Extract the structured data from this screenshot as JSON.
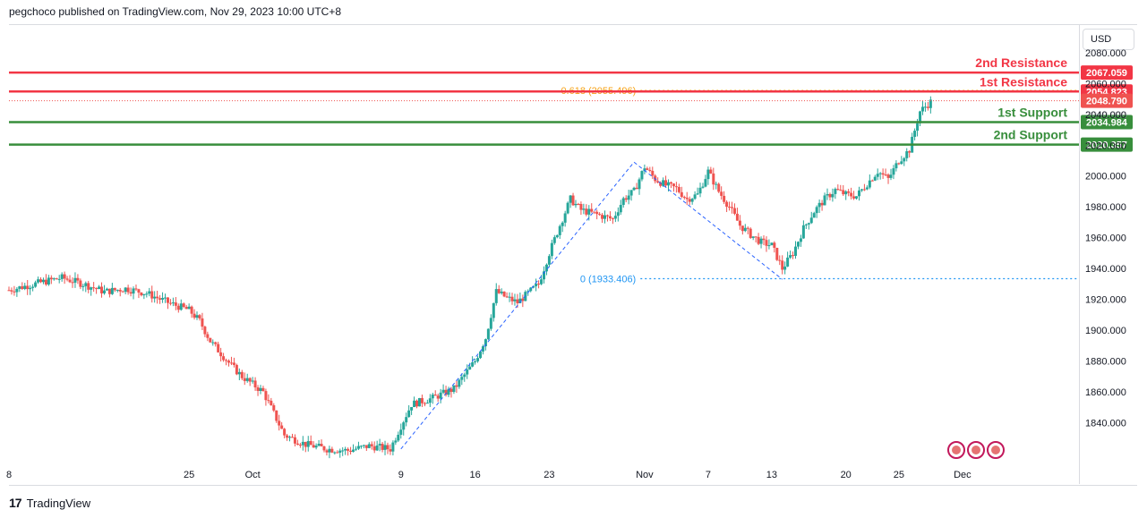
{
  "header": {
    "attribution": "pegchoco published on TradingView.com, Nov 29, 2023 10:00 UTC+8"
  },
  "price_axis": {
    "currency": "USD"
  },
  "footer": {
    "brand": "TradingView",
    "logo_glyph": "17"
  },
  "colors": {
    "up": "#26a69a",
    "down": "#ef5350",
    "resistance": "#f23645",
    "support": "#388e3c",
    "fib_line": "#2962ff",
    "fib_618": "#f7a21b",
    "fib_0": "#2196f3",
    "axis_text": "#131722"
  },
  "chart_data": {
    "type": "candlestick",
    "symbol_scale": "linear",
    "ylim": [
      1820,
      2095
    ],
    "y_ticks": [
      1840,
      1860,
      1880,
      1900,
      1920,
      1940,
      1960,
      1980,
      2000,
      2020,
      2040,
      2060,
      2080
    ],
    "y_tick_labels": [
      "1840.000",
      "1860.000",
      "1880.000",
      "1900.000",
      "1920.000",
      "1940.000",
      "1960.000",
      "1980.000",
      "2000.000",
      "2020.000",
      "2040.000",
      "2060.000",
      "2080.000"
    ],
    "x_tick_labels": [
      {
        "label": "8",
        "day": 0
      },
      {
        "label": "25",
        "day": 17
      },
      {
        "label": "Oct",
        "day": 23
      },
      {
        "label": "9",
        "day": 37
      },
      {
        "label": "16",
        "day": 44
      },
      {
        "label": "23",
        "day": 51
      },
      {
        "label": "Nov",
        "day": 60
      },
      {
        "label": "7",
        "day": 66
      },
      {
        "label": "13",
        "day": 72
      },
      {
        "label": "20",
        "day": 79
      },
      {
        "label": "25",
        "day": 84
      },
      {
        "label": "Dec",
        "day": 90
      }
    ],
    "x_range_days": [
      0,
      101
    ],
    "close_path": [
      [
        0,
        1926
      ],
      [
        3,
        1931
      ],
      [
        5,
        1934
      ],
      [
        7,
        1930
      ],
      [
        9,
        1925
      ],
      [
        11,
        1927
      ],
      [
        13,
        1924
      ],
      [
        15,
        1918
      ],
      [
        17,
        1913
      ],
      [
        18,
        1906
      ],
      [
        19,
        1893
      ],
      [
        21,
        1877
      ],
      [
        22,
        1870
      ],
      [
        24,
        1860
      ],
      [
        26,
        1832
      ],
      [
        28,
        1826
      ],
      [
        30,
        1823
      ],
      [
        32,
        1822
      ],
      [
        34,
        1825
      ],
      [
        36,
        1823
      ],
      [
        37,
        1838
      ],
      [
        38,
        1852
      ],
      [
        40,
        1856
      ],
      [
        42,
        1862
      ],
      [
        43,
        1871
      ],
      [
        44,
        1880
      ],
      [
        45,
        1895
      ],
      [
        46,
        1925
      ],
      [
        47,
        1921
      ],
      [
        48,
        1918
      ],
      [
        50,
        1930
      ],
      [
        51,
        1950
      ],
      [
        52,
        1968
      ],
      [
        53,
        1985
      ],
      [
        54,
        1978
      ],
      [
        55,
        1976
      ],
      [
        57,
        1972
      ],
      [
        58,
        1985
      ],
      [
        59,
        1990
      ],
      [
        60,
        2006
      ],
      [
        61,
        1998
      ],
      [
        62,
        1994
      ],
      [
        63,
        1992
      ],
      [
        64,
        1985
      ],
      [
        65,
        1988
      ],
      [
        66,
        2003
      ],
      [
        67,
        1990
      ],
      [
        68,
        1980
      ],
      [
        69,
        1968
      ],
      [
        70,
        1962
      ],
      [
        71,
        1957
      ],
      [
        72,
        1955
      ],
      [
        73,
        1940
      ],
      [
        74,
        1950
      ],
      [
        75,
        1966
      ],
      [
        76,
        1977
      ],
      [
        77,
        1985
      ],
      [
        78,
        1991
      ],
      [
        79,
        1988
      ],
      [
        80,
        1987
      ],
      [
        81,
        1995
      ],
      [
        82,
        2003
      ],
      [
        83,
        1998
      ],
      [
        84,
        2010
      ],
      [
        85,
        2017
      ],
      [
        86,
        2042
      ],
      [
        87,
        2048
      ]
    ],
    "levels": [
      {
        "name": "2nd Resistance",
        "value": 2067.059,
        "label": "2067.059",
        "kind": "resistance"
      },
      {
        "name": "1st Resistance",
        "value": 2054.823,
        "label": "2054.823",
        "kind": "resistance"
      },
      {
        "name": "1st Support",
        "value": 2034.984,
        "label": "2034.984",
        "kind": "support"
      },
      {
        "name": "2nd Support",
        "value": 2020.357,
        "label": "2020.357",
        "kind": "support"
      }
    ],
    "current_price": {
      "value": 2048.79,
      "label": "2048.790"
    },
    "hidden_axis_label": "2040.000",
    "fibonacci": [
      {
        "label": "0.618 (2055.496)",
        "value": 2055.496,
        "start_day": 52
      },
      {
        "label": "0 (1933.406)",
        "value": 1933.406,
        "start_day": 52
      }
    ],
    "fib_trend": [
      [
        37,
        1823
      ],
      [
        59,
        2009
      ],
      [
        73,
        1933
      ]
    ],
    "event_badges": 3
  }
}
